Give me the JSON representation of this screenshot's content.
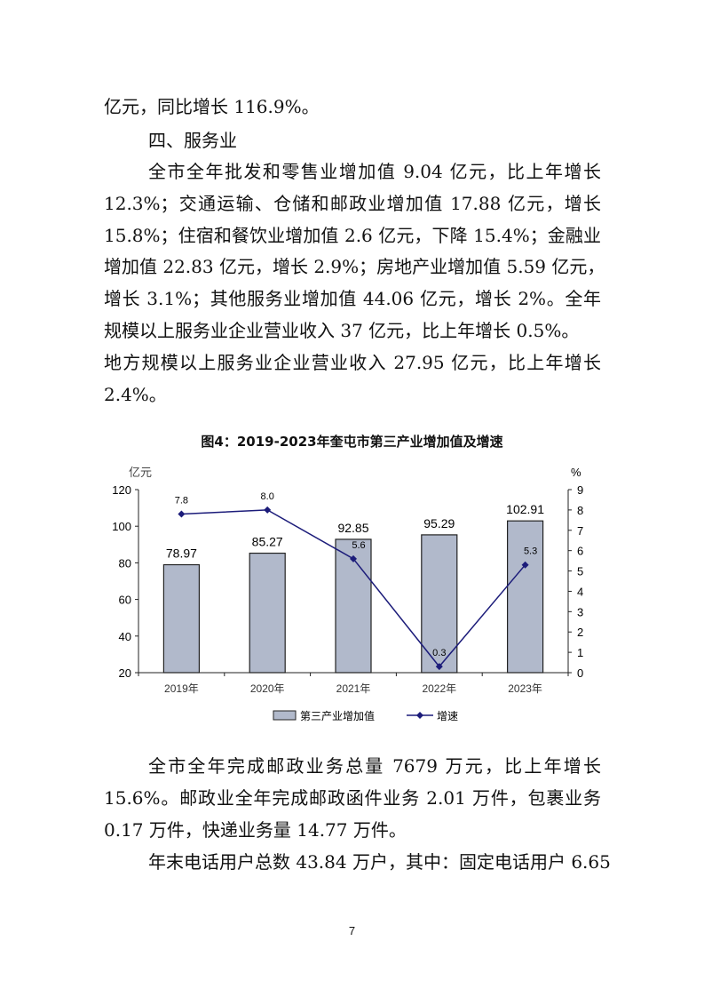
{
  "paragraphs_top": [
    "亿元，同比增长 116.9%。",
    "四、服务业",
    "全市全年批发和零售业增加值 9.04 亿元，比上年增长",
    "12.3%；交通运输、仓储和邮政业增加值 17.88 亿元，增长",
    "15.8%；住宿和餐饮业增加值 2.6 亿元，下降 15.4%；金融业",
    "增加值 22.83 亿元，增长 2.9%；房地产业增加值 5.59 亿元，",
    "增长 3.1%；其他服务业增加值 44.06 亿元，增长 2%。全年",
    "规模以上服务业企业营业收入 37 亿元，比上年增长 0.5%。",
    "地方规模以上服务业企业营业收入 27.95 亿元，比上年增长",
    "2.4%。"
  ],
  "chart_data": {
    "type": "bar+line",
    "title": "图4：2019-2023年奎屯市第三产业增加值及增速",
    "categories": [
      "2019年",
      "2020年",
      "2021年",
      "2022年",
      "2023年"
    ],
    "series": [
      {
        "name": "第三产业增加值",
        "type": "bar",
        "axis": "left",
        "values": [
          78.97,
          85.27,
          92.85,
          95.29,
          102.91
        ],
        "color": "#b1b9cb"
      },
      {
        "name": "增速",
        "type": "line",
        "axis": "right",
        "values": [
          7.8,
          8.0,
          5.6,
          0.3,
          5.3
        ],
        "color": "#1c1c7a"
      }
    ],
    "ylabel_left": "亿元",
    "ylabel_right": "%",
    "ylim_left": [
      20,
      120
    ],
    "yticks_left": [
      20,
      40,
      60,
      80,
      100,
      120
    ],
    "ylim_right": [
      0,
      9
    ],
    "yticks_right": [
      0,
      1,
      2,
      3,
      4,
      5,
      6,
      7,
      8,
      9
    ],
    "grid": false,
    "legend": "bottom"
  },
  "paragraphs_bottom": [
    "全市全年完成邮政业务总量 7679 万元，比上年增长",
    "15.6%。邮政业全年完成邮政函件业务 2.01 万件，包裹业务",
    "0.17 万件，快递业务量 14.77 万件。",
    "年末电话用户总数 43.84 万户，其中：固定电话用户 6.65"
  ],
  "page_number": "7"
}
